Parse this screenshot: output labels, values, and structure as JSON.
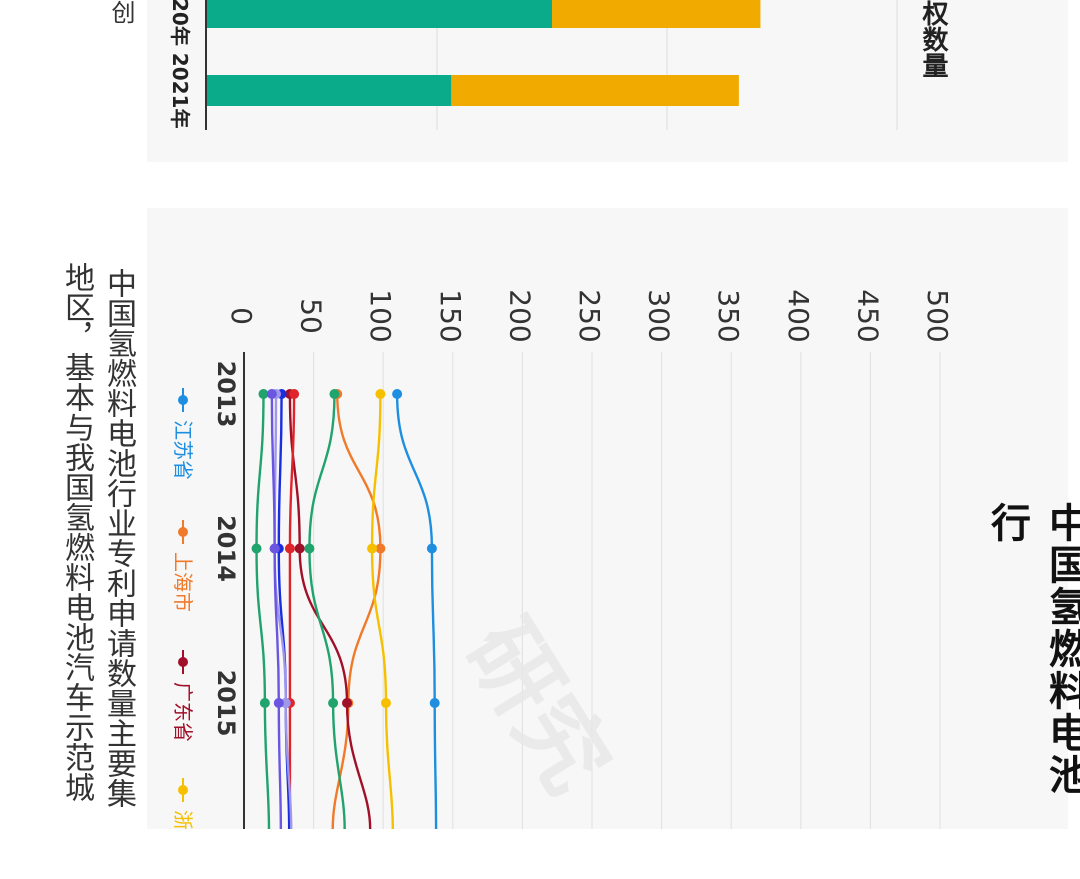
{
  "top_chart": {
    "axis_label_fragment": "权数量",
    "left_text_fragment": "创",
    "categories": [
      "20年",
      "2021年"
    ]
  },
  "bottom_chart": {
    "title": "中国氢燃料电池行",
    "caption_line1": "中国氢燃料电池行业专利申请数量主要集",
    "caption_line2": "地区，基本与我国氢燃料电池汽车示范城",
    "legend": [
      "江苏省",
      "上海市",
      "广东省",
      "浙"
    ],
    "x_ticks": [
      "2013",
      "2014",
      "2015"
    ],
    "y_ticks": [
      "0",
      "50",
      "100",
      "150",
      "200",
      "250",
      "300",
      "350",
      "400",
      "450",
      "500"
    ],
    "watermark": "研究"
  },
  "colors": {
    "teal": "#0aab8a",
    "gold": "#f0aa00",
    "jiangsu": "#1e8fe0",
    "shanghai": "#f07a2a",
    "guangdong": "#a01028",
    "zhejiang": "#f6c000",
    "green": "#21a36e",
    "red": "#e0242c",
    "blue": "#1a2ee0",
    "lavender": "#9f97ea",
    "purple": "#6a56e0"
  },
  "chart_data": [
    {
      "type": "bar",
      "orientation": "stacked",
      "categories": [
        "20年",
        "2021年"
      ],
      "series": [
        {
          "values": [
            240,
            170
          ]
        },
        {
          "values": [
            145,
            200
          ]
        }
      ],
      "ylabel": "权数量",
      "grid": true
    },
    {
      "type": "line",
      "title": "中国氢燃料电池行",
      "x": [
        "2013",
        "2014",
        "2015"
      ],
      "ylim": [
        0,
        500
      ],
      "series": [
        {
          "name": "江苏省",
          "values": [
            110,
            135,
            137
          ]
        },
        {
          "name": "上海市",
          "values": [
            67,
            98,
            75
          ]
        },
        {
          "name": "广东省",
          "values": [
            33,
            40,
            74
          ]
        },
        {
          "name": "浙",
          "values": [
            98,
            92,
            102
          ]
        },
        {
          "values": [
            65,
            47,
            64
          ]
        },
        {
          "values": [
            14,
            9,
            15
          ]
        },
        {
          "values": [
            36,
            33,
            33
          ]
        },
        {
          "values": [
            27,
            25,
            30
          ]
        },
        {
          "values": [
            23,
            22,
            30
          ]
        },
        {
          "values": [
            20,
            22,
            25
          ]
        }
      ],
      "grid": true,
      "legend": "left"
    }
  ]
}
